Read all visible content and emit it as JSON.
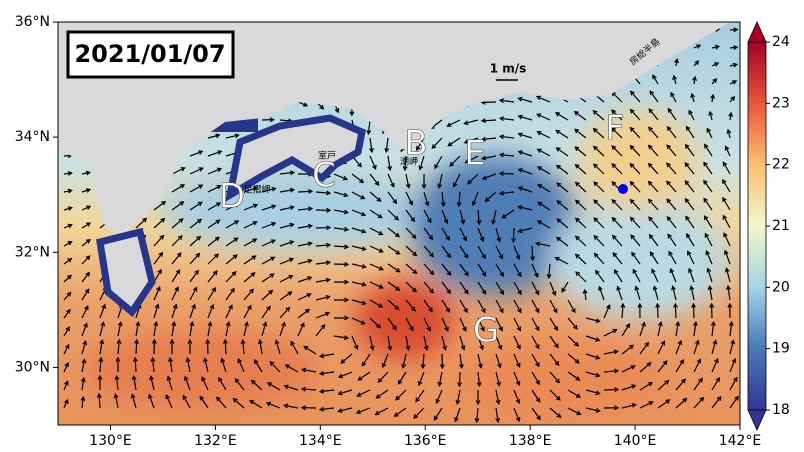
{
  "map": {
    "date": "2021/01/07",
    "scale_label": "1 m/s",
    "xlim": [
      129,
      142
    ],
    "ylim": [
      29,
      36
    ],
    "xticks": [
      {
        "value": 130,
        "label": "130°E"
      },
      {
        "value": 132,
        "label": "132°E"
      },
      {
        "value": 134,
        "label": "134°E"
      },
      {
        "value": 136,
        "label": "136°E"
      },
      {
        "value": 138,
        "label": "138°E"
      },
      {
        "value": 140,
        "label": "140°E"
      },
      {
        "value": 142,
        "label": "142°E"
      }
    ],
    "yticks": [
      {
        "value": 30,
        "label": "30°N"
      },
      {
        "value": 32,
        "label": "32°N"
      },
      {
        "value": 34,
        "label": "34°N"
      },
      {
        "value": 36,
        "label": "36°N"
      }
    ],
    "colorbar": {
      "clim": [
        18,
        24
      ],
      "ticks": [
        18,
        19,
        20,
        21,
        22,
        23,
        24
      ]
    },
    "labels": [
      "B",
      "C",
      "D",
      "E",
      "F",
      "G"
    ],
    "place_names": [
      "室戸",
      "足摺岬",
      "潮岬",
      "房総半島"
    ]
  }
}
